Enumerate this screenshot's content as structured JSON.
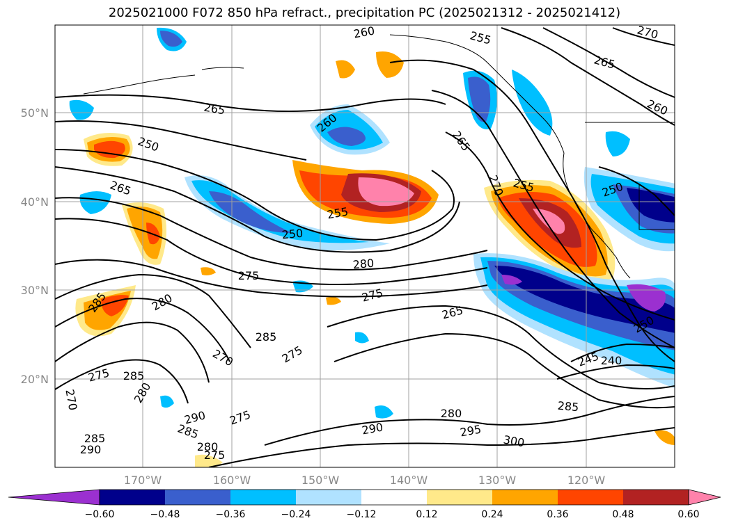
{
  "title": "2025021000 F072 850 hPa refract., precipitation PC (2025021312 - 2025021412)",
  "lat_labels": [
    "50°N",
    "40°N",
    "30°N",
    "20°N"
  ],
  "lon_labels": [
    "170°W",
    "160°W",
    "150°W",
    "140°W",
    "130°W",
    "120°W"
  ],
  "contour_labels": [
    "260",
    "255",
    "270",
    "265",
    "265",
    "260",
    "265",
    "260",
    "250",
    "255",
    "250",
    "270",
    "265",
    "255",
    "250",
    "280",
    "275",
    "285",
    "280",
    "275",
    "265",
    "250",
    "245",
    "240",
    "285",
    "275",
    "270",
    "275",
    "285",
    "280",
    "290",
    "285",
    "275",
    "280",
    "290",
    "295",
    "300",
    "285",
    "270",
    "285",
    "290",
    "280",
    "275"
  ],
  "colorbar": {
    "tick_labels": [
      "−0.60",
      "−0.48",
      "−0.36",
      "−0.24",
      "−0.12",
      "0.12",
      "0.24",
      "0.36",
      "0.48",
      "0.60"
    ],
    "colors": [
      "#9b30d0",
      "#00008b",
      "#3a5fcd",
      "#00bfff",
      "#b0e2ff",
      "#ffffff",
      "#ffe98a",
      "#ffa500",
      "#ff4500",
      "#b22222",
      "#ff82ab"
    ]
  },
  "chart_data": {
    "type": "map",
    "title": "2025021000 F072 850 hPa refract., precipitation PC (2025021312 - 2025021412)",
    "lon_range": [
      "180°W",
      "110°W"
    ],
    "lat_range": [
      "10°N",
      "60°N"
    ],
    "grid": true,
    "fill_variable_levels": [
      -0.6,
      -0.48,
      -0.36,
      -0.24,
      -0.12,
      0.12,
      0.24,
      0.36,
      0.48,
      0.6
    ],
    "contour_levels": [
      240,
      245,
      250,
      255,
      260,
      265,
      270,
      275,
      280,
      285,
      290,
      295,
      300
    ]
  }
}
